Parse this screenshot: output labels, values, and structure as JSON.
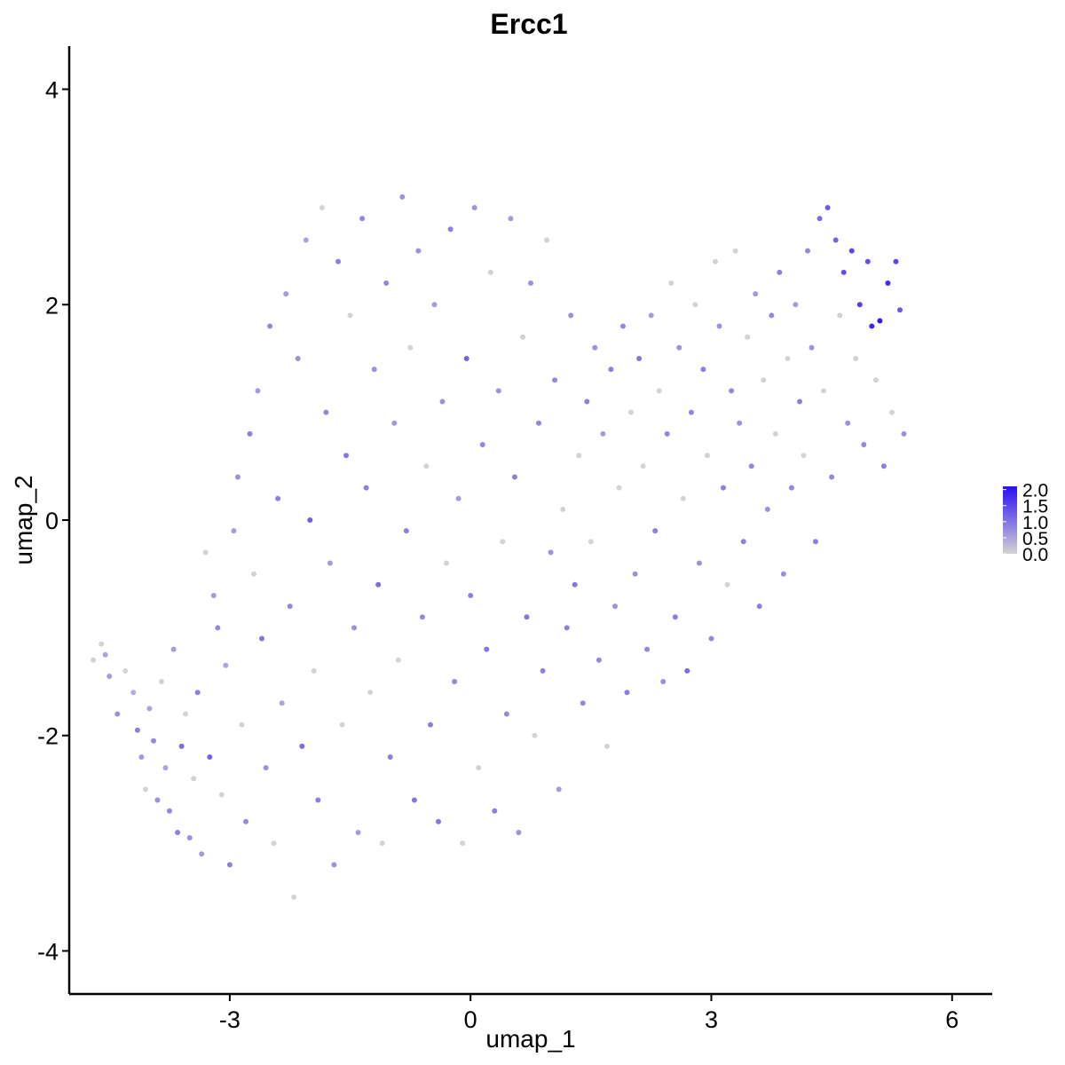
{
  "chart_data": {
    "type": "scatter",
    "title": "Ercc1",
    "xlabel": "umap_1",
    "ylabel": "umap_2",
    "xlim": [
      -5.0,
      6.5
    ],
    "ylim": [
      -4.4,
      4.4
    ],
    "xticks": [
      -3,
      0,
      3,
      6
    ],
    "xtick_labels": [
      "-3",
      "0",
      "3",
      "6"
    ],
    "yticks": [
      -4,
      -2,
      0,
      2,
      4
    ],
    "ytick_labels": [
      "-4",
      "-2",
      "0",
      "2",
      "4"
    ],
    "grid": false,
    "legend_placement": "right",
    "color_scale": {
      "low_color": "#d3d3d3",
      "high_color": "#2a0ff5",
      "min": 0.0,
      "max": 2.1,
      "breaks": [
        0.0,
        0.5,
        1.0,
        1.5,
        2.0
      ],
      "labels": [
        "0.0",
        "0.5",
        "1.0",
        "1.5",
        "2.0"
      ]
    },
    "points": [
      [
        -4.7,
        -1.3,
        0.0
      ],
      [
        -4.6,
        -1.15,
        0.0
      ],
      [
        -4.55,
        -1.25,
        0.5
      ],
      [
        -4.5,
        -1.45,
        0.6
      ],
      [
        -4.4,
        -1.8,
        0.7
      ],
      [
        -4.3,
        -1.4,
        0.0
      ],
      [
        -4.2,
        -1.6,
        0.4
      ],
      [
        -4.15,
        -1.95,
        0.9
      ],
      [
        -4.1,
        -2.2,
        0.6
      ],
      [
        -4.05,
        -2.5,
        0.0
      ],
      [
        -4.0,
        -1.75,
        0.5
      ],
      [
        -3.95,
        -2.05,
        0.8
      ],
      [
        -3.9,
        -2.6,
        0.7
      ],
      [
        -3.85,
        -1.5,
        0.0
      ],
      [
        -3.8,
        -2.3,
        0.5
      ],
      [
        -3.75,
        -2.7,
        0.8
      ],
      [
        -3.7,
        -1.2,
        0.6
      ],
      [
        -3.65,
        -2.9,
        0.9
      ],
      [
        -3.6,
        -2.1,
        1.1
      ],
      [
        -3.55,
        -1.8,
        0.0
      ],
      [
        -3.5,
        -2.95,
        0.7
      ],
      [
        -3.45,
        -2.4,
        0.0
      ],
      [
        -3.4,
        -1.6,
        0.9
      ],
      [
        -3.35,
        -3.1,
        0.6
      ],
      [
        -3.3,
        -0.3,
        0.0
      ],
      [
        -3.25,
        -2.2,
        1.2
      ],
      [
        -3.2,
        -0.7,
        0.6
      ],
      [
        -3.15,
        -1.0,
        0.8
      ],
      [
        -3.1,
        -2.55,
        0.0
      ],
      [
        -3.05,
        -1.35,
        0.5
      ],
      [
        -3.0,
        -3.2,
        0.9
      ],
      [
        -2.95,
        -0.1,
        0.6
      ],
      [
        -2.9,
        0.4,
        0.7
      ],
      [
        -2.85,
        -1.9,
        0.0
      ],
      [
        -2.8,
        -2.8,
        0.8
      ],
      [
        -2.75,
        0.8,
        0.9
      ],
      [
        -2.7,
        -0.5,
        0.0
      ],
      [
        -2.65,
        1.2,
        0.6
      ],
      [
        -2.6,
        -1.1,
        1.0
      ],
      [
        -2.55,
        -2.3,
        0.7
      ],
      [
        -2.5,
        1.8,
        0.8
      ],
      [
        -2.45,
        -3.0,
        0.0
      ],
      [
        -2.4,
        0.2,
        0.9
      ],
      [
        -2.35,
        -1.7,
        0.5
      ],
      [
        -2.3,
        2.1,
        0.6
      ],
      [
        -2.25,
        -0.8,
        0.8
      ],
      [
        -2.2,
        -3.5,
        0.0
      ],
      [
        -2.15,
        1.5,
        0.7
      ],
      [
        -2.1,
        -2.1,
        1.1
      ],
      [
        -2.05,
        2.6,
        0.5
      ],
      [
        -2.0,
        0.0,
        1.3
      ],
      [
        -1.95,
        -1.4,
        0.0
      ],
      [
        -1.9,
        -2.6,
        0.9
      ],
      [
        -1.85,
        2.9,
        0.0
      ],
      [
        -1.8,
        1.0,
        0.8
      ],
      [
        -1.75,
        -0.4,
        0.6
      ],
      [
        -1.7,
        -3.2,
        0.7
      ],
      [
        -1.65,
        2.4,
        0.9
      ],
      [
        -1.6,
        -1.9,
        0.0
      ],
      [
        -1.55,
        0.6,
        1.0
      ],
      [
        -1.5,
        1.9,
        0.0
      ],
      [
        -1.45,
        -1.0,
        0.7
      ],
      [
        -1.4,
        -2.9,
        0.6
      ],
      [
        -1.35,
        2.8,
        0.8
      ],
      [
        -1.3,
        0.3,
        0.9
      ],
      [
        -1.25,
        -1.6,
        0.0
      ],
      [
        -1.2,
        1.4,
        0.7
      ],
      [
        -1.15,
        -0.6,
        1.1
      ],
      [
        -1.1,
        -3.0,
        0.0
      ],
      [
        -1.05,
        2.2,
        0.8
      ],
      [
        -1.0,
        -2.2,
        0.9
      ],
      [
        -0.95,
        0.9,
        0.6
      ],
      [
        -0.9,
        -1.3,
        0.0
      ],
      [
        -0.85,
        3.0,
        0.7
      ],
      [
        -0.8,
        -0.1,
        0.9
      ],
      [
        -0.75,
        1.6,
        0.0
      ],
      [
        -0.7,
        -2.6,
        1.0
      ],
      [
        -0.65,
        2.5,
        0.7
      ],
      [
        -0.6,
        -0.9,
        0.8
      ],
      [
        -0.55,
        0.5,
        0.0
      ],
      [
        -0.5,
        -1.9,
        0.9
      ],
      [
        -0.45,
        2.0,
        0.6
      ],
      [
        -0.4,
        -2.8,
        1.0
      ],
      [
        -0.35,
        1.1,
        0.7
      ],
      [
        -0.3,
        -0.4,
        0.0
      ],
      [
        -0.25,
        2.7,
        0.9
      ],
      [
        -0.2,
        -1.5,
        0.8
      ],
      [
        -0.15,
        0.2,
        0.6
      ],
      [
        -0.1,
        -3.0,
        0.0
      ],
      [
        -0.05,
        1.5,
        1.2
      ],
      [
        0.0,
        -0.7,
        0.9
      ],
      [
        0.05,
        2.9,
        0.7
      ],
      [
        0.1,
        -2.3,
        0.0
      ],
      [
        0.15,
        0.7,
        0.8
      ],
      [
        0.2,
        -1.2,
        1.0
      ],
      [
        0.25,
        2.3,
        0.0
      ],
      [
        0.3,
        -2.7,
        0.9
      ],
      [
        0.35,
        1.2,
        0.7
      ],
      [
        0.4,
        -0.2,
        0.0
      ],
      [
        0.45,
        -1.8,
        0.8
      ],
      [
        0.5,
        2.8,
        0.6
      ],
      [
        0.55,
        0.4,
        0.9
      ],
      [
        0.6,
        -2.9,
        0.7
      ],
      [
        0.65,
        1.7,
        0.0
      ],
      [
        0.7,
        -0.9,
        1.0
      ],
      [
        0.75,
        2.2,
        0.7
      ],
      [
        0.8,
        -2.0,
        0.0
      ],
      [
        0.85,
        0.9,
        0.8
      ],
      [
        0.9,
        -1.4,
        0.9
      ],
      [
        0.95,
        2.6,
        0.0
      ],
      [
        1.0,
        -0.3,
        0.7
      ],
      [
        1.05,
        1.3,
        0.8
      ],
      [
        1.1,
        -2.5,
        0.6
      ],
      [
        1.15,
        0.1,
        0.0
      ],
      [
        1.2,
        -1.0,
        0.9
      ],
      [
        1.25,
        1.9,
        0.7
      ],
      [
        1.3,
        -0.6,
        1.0
      ],
      [
        1.35,
        0.6,
        0.0
      ],
      [
        1.4,
        -1.7,
        0.8
      ],
      [
        1.45,
        1.1,
        0.9
      ],
      [
        1.5,
        -0.2,
        0.0
      ],
      [
        1.55,
        1.6,
        0.7
      ],
      [
        1.6,
        -1.3,
        0.8
      ],
      [
        1.65,
        0.8,
        0.6
      ],
      [
        1.7,
        -2.1,
        0.0
      ],
      [
        1.75,
        1.4,
        0.9
      ],
      [
        1.8,
        -0.8,
        0.7
      ],
      [
        1.85,
        0.3,
        0.0
      ],
      [
        1.9,
        1.8,
        0.8
      ],
      [
        1.95,
        -1.6,
        0.9
      ],
      [
        2.0,
        1.0,
        0.0
      ],
      [
        2.05,
        -0.5,
        0.7
      ],
      [
        2.1,
        1.5,
        1.0
      ],
      [
        2.15,
        0.5,
        0.0
      ],
      [
        2.2,
        -1.2,
        0.8
      ],
      [
        2.25,
        1.9,
        0.6
      ],
      [
        2.3,
        -0.1,
        0.9
      ],
      [
        2.35,
        1.2,
        0.0
      ],
      [
        2.4,
        -1.5,
        0.7
      ],
      [
        2.45,
        0.8,
        0.8
      ],
      [
        2.5,
        2.2,
        0.0
      ],
      [
        2.55,
        -0.9,
        0.9
      ],
      [
        2.6,
        1.6,
        0.7
      ],
      [
        2.65,
        0.2,
        0.0
      ],
      [
        2.7,
        -1.4,
        1.1
      ],
      [
        2.75,
        1.0,
        0.8
      ],
      [
        2.8,
        2.0,
        0.0
      ],
      [
        2.85,
        -0.4,
        0.7
      ],
      [
        2.9,
        1.4,
        0.9
      ],
      [
        2.95,
        0.6,
        0.0
      ],
      [
        3.0,
        -1.1,
        0.8
      ],
      [
        3.05,
        2.4,
        0.0
      ],
      [
        3.1,
        1.8,
        0.7
      ],
      [
        3.15,
        0.3,
        0.9
      ],
      [
        3.2,
        -0.6,
        0.0
      ],
      [
        3.25,
        1.2,
        0.8
      ],
      [
        3.3,
        2.5,
        0.0
      ],
      [
        3.35,
        0.9,
        0.7
      ],
      [
        3.4,
        -0.2,
        0.9
      ],
      [
        3.45,
        1.7,
        0.0
      ],
      [
        3.5,
        0.5,
        0.8
      ],
      [
        3.55,
        2.1,
        0.6
      ],
      [
        3.6,
        -0.8,
        0.9
      ],
      [
        3.65,
        1.3,
        0.0
      ],
      [
        3.7,
        0.1,
        0.7
      ],
      [
        3.75,
        1.9,
        0.8
      ],
      [
        3.8,
        0.8,
        0.0
      ],
      [
        3.85,
        2.3,
        0.9
      ],
      [
        3.9,
        -0.5,
        0.7
      ],
      [
        3.95,
        1.5,
        0.0
      ],
      [
        4.0,
        0.3,
        0.8
      ],
      [
        4.05,
        2.0,
        0.6
      ],
      [
        4.1,
        1.1,
        0.9
      ],
      [
        4.15,
        0.6,
        0.0
      ],
      [
        4.2,
        2.5,
        0.8
      ],
      [
        4.25,
        1.6,
        0.7
      ],
      [
        4.3,
        -0.2,
        0.9
      ],
      [
        4.35,
        2.8,
        1.1
      ],
      [
        4.4,
        1.2,
        0.0
      ],
      [
        4.45,
        2.9,
        1.3
      ],
      [
        4.5,
        0.4,
        0.8
      ],
      [
        4.55,
        2.6,
        1.2
      ],
      [
        4.6,
        1.9,
        0.0
      ],
      [
        4.65,
        2.3,
        1.4
      ],
      [
        4.7,
        0.9,
        0.7
      ],
      [
        4.75,
        2.5,
        1.5
      ],
      [
        4.8,
        1.5,
        0.0
      ],
      [
        4.85,
        2.0,
        1.6
      ],
      [
        4.9,
        0.7,
        0.8
      ],
      [
        4.95,
        2.4,
        1.4
      ],
      [
        5.0,
        1.8,
        1.9
      ],
      [
        5.05,
        1.3,
        0.0
      ],
      [
        5.1,
        1.85,
        2.0
      ],
      [
        5.15,
        0.5,
        0.9
      ],
      [
        5.2,
        2.2,
        1.8
      ],
      [
        5.25,
        1.0,
        0.0
      ],
      [
        5.3,
        2.4,
        1.5
      ],
      [
        5.35,
        1.95,
        1.3
      ],
      [
        5.4,
        0.8,
        0.7
      ]
    ]
  }
}
